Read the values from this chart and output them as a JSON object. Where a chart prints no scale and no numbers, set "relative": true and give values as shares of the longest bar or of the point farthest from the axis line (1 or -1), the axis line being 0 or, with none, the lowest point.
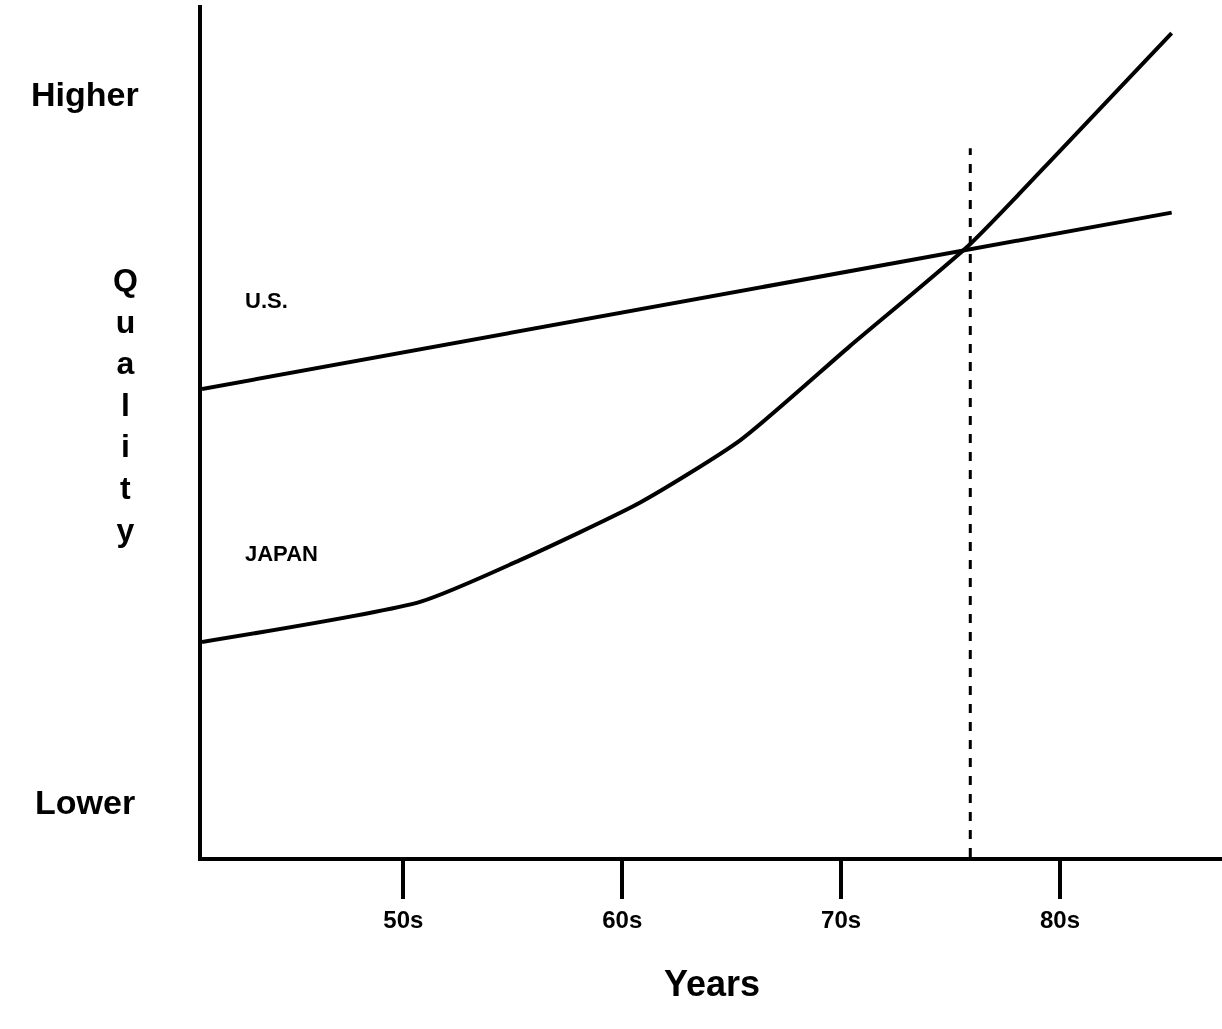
{
  "chart_data": {
    "type": "line",
    "relative": true,
    "xlabel": "Years",
    "ylabel": "Quality",
    "xlim": [
      40.8,
      87.4
    ],
    "xticks": [
      {
        "value": 50,
        "label": "50s"
      },
      {
        "value": 60,
        "label": "60s"
      },
      {
        "value": 70,
        "label": "70s"
      },
      {
        "value": 80,
        "label": "80s"
      }
    ],
    "series": [
      {
        "name": "U.S.",
        "color": "#000000",
        "x": [
          40.8,
          85.1
        ],
        "values": [
          0.568,
          0.782
        ]
      },
      {
        "name": "JAPAN",
        "color": "#000000",
        "x": [
          40.8,
          50.8,
          55.3,
          60.8,
          65.4,
          70.4,
          75.9,
          80.0,
          85.1
        ],
        "values": [
          0.261,
          0.31,
          0.36,
          0.43,
          0.506,
          0.62,
          0.744,
          0.857,
          1.0
        ]
      }
    ],
    "ref_lines": [
      {
        "axis": "x",
        "value": 75.9,
        "line_style": "dashed",
        "color": "#000000"
      }
    ],
    "annotations": [
      "Higher",
      "Lower"
    ],
    "legend": false,
    "marker": "none",
    "line_style": "solid"
  }
}
